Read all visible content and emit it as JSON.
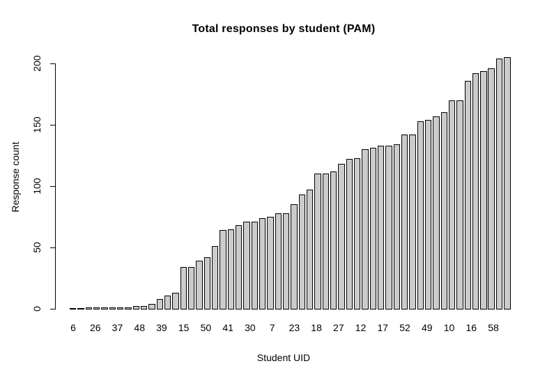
{
  "chart_data": {
    "type": "bar",
    "title": "Total responses by student (PAM)",
    "xlabel": "Student UID",
    "ylabel": "Response count",
    "ylim": [
      0,
      210
    ],
    "y_ticks": [
      0,
      50,
      100,
      150,
      200
    ],
    "x_tick_labels": [
      "6",
      "26",
      "37",
      "48",
      "39",
      "15",
      "50",
      "41",
      "30",
      "7",
      "23",
      "18",
      "27",
      "12",
      "17",
      "52",
      "49",
      "10",
      "16",
      "58"
    ],
    "x_tick_note": "bars sorted ascending by response count; only every ~3rd bar's student UID is labeled",
    "values": [
      0,
      0,
      1,
      1,
      1,
      1,
      1,
      1,
      2,
      2,
      4,
      8,
      11,
      13,
      34,
      34,
      39,
      42,
      51,
      64,
      65,
      68,
      71,
      71,
      74,
      75,
      78,
      78,
      85,
      93,
      97,
      110,
      110,
      112,
      118,
      122,
      123,
      130,
      131,
      133,
      133,
      134,
      142,
      142,
      153,
      154,
      157,
      160,
      170,
      170,
      186,
      192,
      194,
      196,
      204,
      205
    ],
    "bar_fill": "#cbcbcb",
    "bar_stroke": "#000000",
    "background": "#ffffff",
    "grid": false,
    "legend": false
  }
}
